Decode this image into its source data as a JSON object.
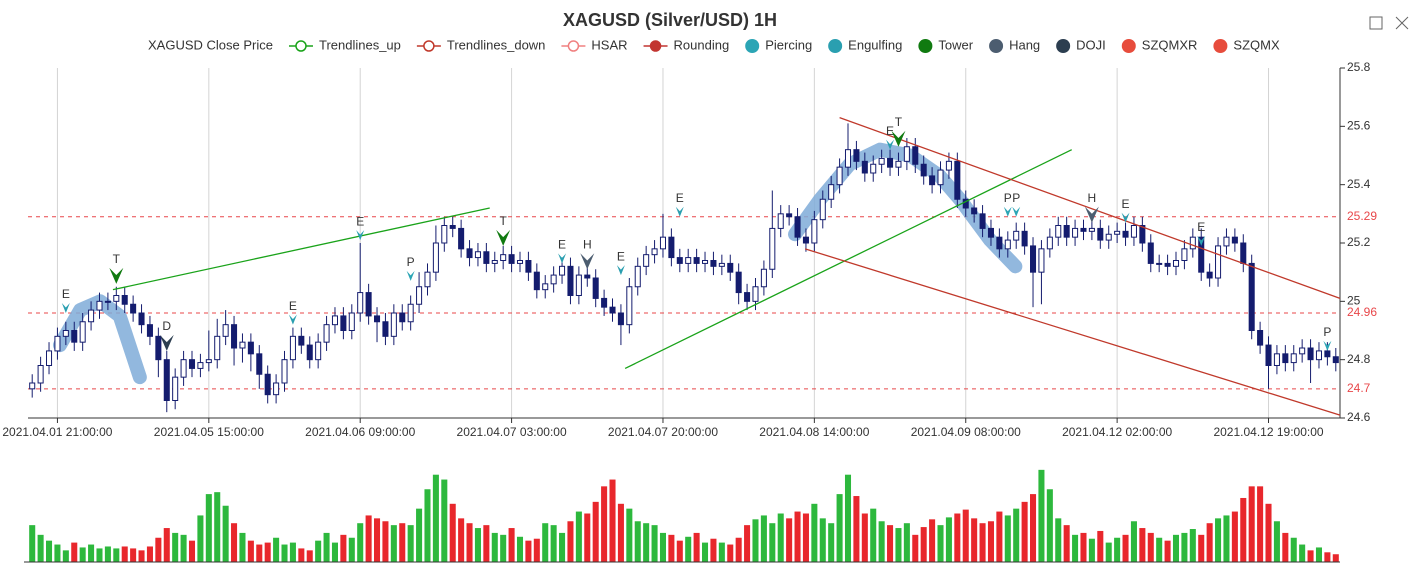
{
  "chart_data": {
    "type": "candlestick",
    "title": "XAGUSD (Silver/USD) 1H",
    "legend": [
      {
        "name": "XAGUSD Close Price",
        "color": "#333333",
        "icon": "none"
      },
      {
        "name": "Trendlines_up",
        "color": "#1aa31a",
        "icon": "line-hollow"
      },
      {
        "name": "Trendlines_down",
        "color": "#c0392b",
        "icon": "line-hollow"
      },
      {
        "name": "HSAR",
        "color": "#f08080",
        "icon": "line-hollow"
      },
      {
        "name": "Rounding",
        "color": "#c23531",
        "icon": "line-filled"
      },
      {
        "name": "Piercing",
        "color": "#2ba5b5",
        "icon": "dot"
      },
      {
        "name": "Engulfing",
        "color": "#2a9fb0",
        "icon": "dot"
      },
      {
        "name": "Tower",
        "color": "#107a10",
        "icon": "dot"
      },
      {
        "name": "Hang",
        "color": "#4c5d70",
        "icon": "dot"
      },
      {
        "name": "DOJI",
        "color": "#2c3e50",
        "icon": "dot"
      },
      {
        "name": "SZQMXR",
        "color": "#e74c3c",
        "icon": "dot"
      },
      {
        "name": "SZQMX",
        "color": "#e74c3c",
        "icon": "dot"
      }
    ],
    "xlim": [
      -0.5,
      155.5
    ],
    "xticks": [
      {
        "value": 3,
        "label": "2021.04.01 21:00:00"
      },
      {
        "value": 21,
        "label": "2021.04.05 15:00:00"
      },
      {
        "value": 39,
        "label": "2021.04.06 09:00:00"
      },
      {
        "value": 57,
        "label": "2021.04.07 03:00:00"
      },
      {
        "value": 75,
        "label": "2021.04.07 20:00:00"
      },
      {
        "value": 93,
        "label": "2021.04.08 14:00:00"
      },
      {
        "value": 111,
        "label": "2021.04.09 08:00:00"
      },
      {
        "value": 129,
        "label": "2021.04.12 02:00:00"
      },
      {
        "value": 147,
        "label": "2021.04.12 19:00:00"
      }
    ],
    "ylim": [
      24.6,
      25.8
    ],
    "yticks": [
      24.6,
      24.8,
      25,
      25.2,
      25.4,
      25.6,
      25.8
    ],
    "grid": true,
    "colors": {
      "up": "#ffffff",
      "down": "#141c6e",
      "edge": "#141c6e"
    },
    "open": [
      24.7,
      24.72,
      24.78,
      24.83,
      24.88,
      24.9,
      24.86,
      24.93,
      24.97,
      25.0,
      25.0,
      25.02,
      24.99,
      24.96,
      24.92,
      24.88,
      24.8,
      24.66,
      24.74,
      24.8,
      24.77,
      24.79,
      24.8,
      24.88,
      24.92,
      24.84,
      24.86,
      24.82,
      24.75,
      24.68,
      24.72,
      24.8,
      24.88,
      24.85,
      24.8,
      24.86,
      24.92,
      24.95,
      24.9,
      24.96,
      25.03,
      24.95,
      24.93,
      24.88,
      24.96,
      24.93,
      24.99,
      25.05,
      25.1,
      25.2,
      25.26,
      25.25,
      25.18,
      25.15,
      25.17,
      25.13,
      25.14,
      25.16,
      25.13,
      25.14,
      25.1,
      25.04,
      25.06,
      25.09,
      25.12,
      25.02,
      25.09,
      25.08,
      25.01,
      24.98,
      24.96,
      24.92,
      25.05,
      25.12,
      25.16,
      25.18,
      25.22,
      25.15,
      25.13,
      25.15,
      25.13,
      25.14,
      25.12,
      25.13,
      25.1,
      25.03,
      25.0,
      25.05,
      25.11,
      25.25,
      25.3,
      25.29,
      25.22,
      25.2,
      25.28,
      25.35,
      25.4,
      25.46,
      25.52,
      25.48,
      25.44,
      25.47,
      25.49,
      25.46,
      25.48,
      25.53,
      25.47,
      25.43,
      25.4,
      25.45,
      25.48,
      25.35,
      25.32,
      25.3,
      25.25,
      25.22,
      25.18,
      25.21,
      25.24,
      25.19,
      25.1,
      25.18,
      25.22,
      25.26,
      25.22,
      25.25,
      25.24,
      25.25,
      25.21,
      25.23,
      25.24,
      25.22,
      25.26,
      25.2,
      25.13,
      25.13,
      25.12,
      25.14,
      25.18,
      25.22,
      25.1,
      25.08,
      25.19,
      25.22,
      25.2,
      25.13,
      24.9,
      24.85,
      24.78,
      24.82,
      24.79,
      24.82,
      24.84,
      24.8,
      24.83,
      24.81
    ],
    "high": [
      24.75,
      24.81,
      24.86,
      24.91,
      24.93,
      24.93,
      24.96,
      25.0,
      25.03,
      25.03,
      25.05,
      25.05,
      25.02,
      24.99,
      24.95,
      24.91,
      24.83,
      24.77,
      24.83,
      24.83,
      24.82,
      24.9,
      24.94,
      24.97,
      24.95,
      24.89,
      24.89,
      24.85,
      24.78,
      24.75,
      24.83,
      24.91,
      24.91,
      24.88,
      24.89,
      24.95,
      24.98,
      24.98,
      24.99,
      25.2,
      25.06,
      24.98,
      24.96,
      24.99,
      24.99,
      25.02,
      25.1,
      25.13,
      25.26,
      25.29,
      25.29,
      25.28,
      25.21,
      25.2,
      25.2,
      25.17,
      25.19,
      25.19,
      25.17,
      25.17,
      25.13,
      25.09,
      25.12,
      25.15,
      25.15,
      25.12,
      25.12,
      25.11,
      25.04,
      25.01,
      24.99,
      25.08,
      25.15,
      25.19,
      25.21,
      25.3,
      25.25,
      25.18,
      25.18,
      25.18,
      25.17,
      25.17,
      25.16,
      25.16,
      25.13,
      25.06,
      25.08,
      25.14,
      25.38,
      25.33,
      25.33,
      25.32,
      25.25,
      25.31,
      25.38,
      25.43,
      25.49,
      25.61,
      25.55,
      25.51,
      25.5,
      25.52,
      25.52,
      25.51,
      25.56,
      25.56,
      25.5,
      25.46,
      25.48,
      25.51,
      25.51,
      25.38,
      25.35,
      25.33,
      25.28,
      25.25,
      25.24,
      25.27,
      25.27,
      25.22,
      25.21,
      25.25,
      25.29,
      25.29,
      25.28,
      25.28,
      25.28,
      25.28,
      25.26,
      25.27,
      25.27,
      25.29,
      25.29,
      25.23,
      25.16,
      25.16,
      25.17,
      25.21,
      25.25,
      25.25,
      25.13,
      25.22,
      25.25,
      25.25,
      25.23,
      25.16,
      24.93,
      24.88,
      24.85,
      24.85,
      24.85,
      24.87,
      24.87,
      24.86,
      24.86,
      24.84
    ],
    "low": [
      24.67,
      24.69,
      24.75,
      24.8,
      24.85,
      24.83,
      24.83,
      24.9,
      24.94,
      24.97,
      24.97,
      24.96,
      24.93,
      24.89,
      24.85,
      24.74,
      24.62,
      24.63,
      24.71,
      24.74,
      24.74,
      24.76,
      24.77,
      24.85,
      24.78,
      24.79,
      24.76,
      24.7,
      24.65,
      24.65,
      24.69,
      24.77,
      24.82,
      24.77,
      24.77,
      24.83,
      24.89,
      24.87,
      24.87,
      24.93,
      24.92,
      24.86,
      24.85,
      24.85,
      24.9,
      24.9,
      24.96,
      25.02,
      25.07,
      25.17,
      25.22,
      25.15,
      25.12,
      25.12,
      25.1,
      25.1,
      25.11,
      25.1,
      25.1,
      25.07,
      25.01,
      25.01,
      25.03,
      25.06,
      24.99,
      24.99,
      25.05,
      24.98,
      24.95,
      24.93,
      24.85,
      24.89,
      25.02,
      25.09,
      25.13,
      25.15,
      25.12,
      25.1,
      25.1,
      25.1,
      25.1,
      25.09,
      25.09,
      25.07,
      24.99,
      24.97,
      24.97,
      25.02,
      25.08,
      25.22,
      25.26,
      25.19,
      25.17,
      25.17,
      25.25,
      25.32,
      25.37,
      25.43,
      25.45,
      25.41,
      25.41,
      25.44,
      25.43,
      25.43,
      25.45,
      25.44,
      25.4,
      25.37,
      25.37,
      25.42,
      25.32,
      25.29,
      25.27,
      25.22,
      25.19,
      25.15,
      25.15,
      25.18,
      25.16,
      24.98,
      24.99,
      25.15,
      25.19,
      25.19,
      25.19,
      25.21,
      25.21,
      25.18,
      25.18,
      25.2,
      25.19,
      25.19,
      25.17,
      25.1,
      25.1,
      25.09,
      25.09,
      25.11,
      25.15,
      25.07,
      25.05,
      25.05,
      25.16,
      25.17,
      25.1,
      24.87,
      24.82,
      24.7,
      24.75,
      24.76,
      24.76,
      24.79,
      24.72,
      24.77,
      24.78,
      24.76
    ],
    "close": [
      24.72,
      24.78,
      24.83,
      24.88,
      24.9,
      24.86,
      24.93,
      24.97,
      25.0,
      25.0,
      25.02,
      24.99,
      24.96,
      24.92,
      24.88,
      24.8,
      24.66,
      24.74,
      24.8,
      24.77,
      24.79,
      24.8,
      24.88,
      24.92,
      24.84,
      24.86,
      24.82,
      24.75,
      24.68,
      24.72,
      24.8,
      24.88,
      24.85,
      24.8,
      24.86,
      24.92,
      24.95,
      24.9,
      24.96,
      25.03,
      24.95,
      24.93,
      24.88,
      24.96,
      24.93,
      24.99,
      25.05,
      25.1,
      25.2,
      25.26,
      25.25,
      25.18,
      25.15,
      25.17,
      25.13,
      25.14,
      25.16,
      25.13,
      25.14,
      25.1,
      25.04,
      25.06,
      25.09,
      25.12,
      25.02,
      25.09,
      25.08,
      25.01,
      24.98,
      24.96,
      24.92,
      25.05,
      25.12,
      25.16,
      25.18,
      25.22,
      25.15,
      25.13,
      25.15,
      25.13,
      25.14,
      25.12,
      25.13,
      25.1,
      25.03,
      25.0,
      25.05,
      25.11,
      25.25,
      25.3,
      25.29,
      25.22,
      25.2,
      25.28,
      25.35,
      25.4,
      25.46,
      25.52,
      25.48,
      25.44,
      25.47,
      25.49,
      25.46,
      25.48,
      25.53,
      25.47,
      25.43,
      25.4,
      25.45,
      25.48,
      25.35,
      25.32,
      25.3,
      25.25,
      25.22,
      25.18,
      25.21,
      25.24,
      25.19,
      25.1,
      25.18,
      25.22,
      25.26,
      25.22,
      25.25,
      25.24,
      25.25,
      25.21,
      25.23,
      25.24,
      25.22,
      25.26,
      25.2,
      25.13,
      25.13,
      25.12,
      25.14,
      25.18,
      25.22,
      25.1,
      25.08,
      25.19,
      25.22,
      25.2,
      25.13,
      24.9,
      24.85,
      24.78,
      24.82,
      24.79,
      24.82,
      24.84,
      24.8,
      24.83,
      24.81,
      24.79
    ],
    "volume": {
      "ylim": [
        0,
        100
      ],
      "up_color": "#2db83d",
      "down_color": "#e8272c",
      "values": [
        38,
        28,
        22,
        18,
        12,
        20,
        15,
        18,
        14,
        16,
        14,
        16,
        14,
        12,
        16,
        25,
        35,
        30,
        28,
        22,
        48,
        70,
        72,
        58,
        40,
        30,
        22,
        18,
        20,
        25,
        18,
        20,
        14,
        12,
        22,
        30,
        20,
        28,
        25,
        40,
        48,
        45,
        42,
        38,
        40,
        38,
        55,
        75,
        90,
        85,
        60,
        45,
        40,
        35,
        38,
        30,
        28,
        35,
        26,
        22,
        24,
        40,
        38,
        30,
        42,
        52,
        50,
        62,
        78,
        85,
        60,
        55,
        42,
        40,
        38,
        30,
        28,
        22,
        26,
        30,
        20,
        24,
        20,
        18,
        25,
        38,
        44,
        48,
        40,
        50,
        45,
        52,
        50,
        60,
        45,
        40,
        70,
        90,
        68,
        50,
        55,
        42,
        38,
        35,
        40,
        28,
        36,
        44,
        38,
        46,
        50,
        54,
        45,
        40,
        42,
        52,
        48,
        55,
        62,
        70,
        95,
        75,
        45,
        38,
        28,
        30,
        24,
        32,
        20,
        25,
        28,
        42,
        35,
        30,
        25,
        22,
        28,
        30,
        34,
        28,
        40,
        45,
        48,
        52,
        66,
        78,
        78,
        60,
        42,
        30,
        25,
        18,
        12,
        15,
        10,
        8
      ]
    },
    "levels": {
      "color": "#e8474a",
      "values": [
        25.29,
        24.96,
        24.7
      ]
    },
    "trendlines": [
      {
        "color": "#1aa31a",
        "x": [
          9.6,
          54.4
        ],
        "y": [
          25.04,
          25.32
        ]
      },
      {
        "color": "#1aa31a",
        "x": [
          70.5,
          123.6
        ],
        "y": [
          24.77,
          25.52
        ]
      },
      {
        "color": "#c0392b",
        "x": [
          96,
          155.5
        ],
        "y": [
          25.63,
          25.01
        ]
      },
      {
        "color": "#c0392b",
        "x": [
          91.9,
          155.5
        ],
        "y": [
          25.18,
          24.61
        ]
      }
    ],
    "rounding": {
      "color": "#7fabd8",
      "arcs": [
        {
          "x": [
            3.3,
            5.7,
            8.1,
            10.4,
            12.8
          ],
          "y": [
            24.85,
            24.97,
            25.0,
            24.95,
            24.74
          ]
        },
        {
          "x": [
            90.7,
            93.7,
            97.2,
            100.8,
            104.4,
            107.9,
            110.3,
            113.9,
            116.9
          ],
          "y": [
            25.23,
            25.35,
            25.47,
            25.52,
            25.5,
            25.43,
            25.35,
            25.21,
            25.12
          ]
        }
      ]
    },
    "markers": [
      {
        "label": "E",
        "x": 4,
        "price": 24.96,
        "color": "#2a9fb0"
      },
      {
        "label": "T",
        "x": 10,
        "price": 25.06,
        "color": "#107a10"
      },
      {
        "label": "D",
        "x": 16,
        "price": 24.83,
        "color": "#2c3e50"
      },
      {
        "label": "E",
        "x": 31,
        "price": 24.92,
        "color": "#2a9fb0"
      },
      {
        "label": "E",
        "x": 39,
        "price": 25.21,
        "color": "#2a9fb0"
      },
      {
        "label": "P",
        "x": 45,
        "price": 25.07,
        "color": "#2ba5b5"
      },
      {
        "label": "T",
        "x": 56,
        "price": 25.19,
        "color": "#107a10"
      },
      {
        "label": "E",
        "x": 63,
        "price": 25.13,
        "color": "#2a9fb0"
      },
      {
        "label": "H",
        "x": 66,
        "price": 25.11,
        "color": "#4c5d70"
      },
      {
        "label": "E",
        "x": 70,
        "price": 25.09,
        "color": "#2a9fb0"
      },
      {
        "label": "E",
        "x": 77,
        "price": 25.29,
        "color": "#2a9fb0"
      },
      {
        "label": "E",
        "x": 102,
        "price": 25.52,
        "color": "#2a9fb0"
      },
      {
        "label": "T",
        "x": 103,
        "price": 25.53,
        "color": "#107a10"
      },
      {
        "label": "P",
        "x": 116,
        "price": 25.29,
        "color": "#2ba5b5"
      },
      {
        "label": "P",
        "x": 117,
        "price": 25.29,
        "color": "#2ba5b5"
      },
      {
        "label": "H",
        "x": 126,
        "price": 25.27,
        "color": "#4c5d70"
      },
      {
        "label": "E",
        "x": 130,
        "price": 25.27,
        "color": "#2a9fb0"
      },
      {
        "label": "E",
        "x": 139,
        "price": 25.19,
        "color": "#2a9fb0"
      },
      {
        "label": "P",
        "x": 154,
        "price": 24.83,
        "color": "#2ba5b5"
      }
    ]
  }
}
